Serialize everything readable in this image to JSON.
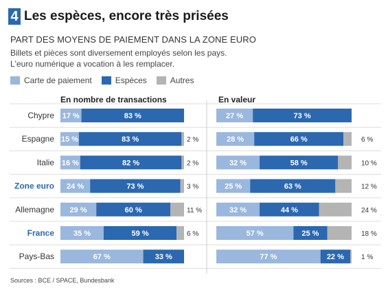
{
  "header": {
    "number": "4",
    "title": "Les espèces, encore très prisées"
  },
  "subtitle": "PART DES MOYENS DE PAIEMENT DANS LA ZONE EURO",
  "description": [
    "Billets et pièces sont diversement employés selon les pays.",
    "L'euro numérique a vocation à les remplacer."
  ],
  "legend": [
    {
      "label": "Carte de paiement",
      "color": "#9ab7dd"
    },
    {
      "label": "Espèces",
      "color": "#2b68b0"
    },
    {
      "label": "Autres",
      "color": "#b4b4b4"
    }
  ],
  "source": "Sources : BCE / SPACE, Bundesbank",
  "colors": {
    "card": "#9ab7dd",
    "cash": "#2b68b0",
    "other": "#b4b4b4",
    "highlight": "#2b68b0"
  },
  "chart_data": [
    {
      "type": "bar",
      "orientation": "horizontal-stacked",
      "title": "En nombre de transactions",
      "unit": "%",
      "categories": [
        "Chypre",
        "Espagne",
        "Italie",
        "Zone euro",
        "Allemagne",
        "France",
        "Pays-Bas"
      ],
      "highlighted": [
        "Zone euro",
        "France"
      ],
      "series": [
        {
          "name": "Carte de paiement",
          "values": [
            17,
            15,
            16,
            24,
            29,
            35,
            67
          ]
        },
        {
          "name": "Espèces",
          "values": [
            83,
            83,
            82,
            73,
            60,
            59,
            33
          ]
        },
        {
          "name": "Autres",
          "values": [
            0,
            2,
            2,
            3,
            11,
            6,
            0
          ]
        }
      ]
    },
    {
      "type": "bar",
      "orientation": "horizontal-stacked",
      "title": "En valeur",
      "unit": "%",
      "categories": [
        "Chypre",
        "Espagne",
        "Italie",
        "Zone euro",
        "Allemagne",
        "France",
        "Pays-Bas"
      ],
      "highlighted": [
        "Zone euro",
        "France"
      ],
      "series": [
        {
          "name": "Carte de paiement",
          "values": [
            27,
            28,
            32,
            25,
            32,
            57,
            77
          ]
        },
        {
          "name": "Espèces",
          "values": [
            73,
            66,
            58,
            63,
            44,
            25,
            22
          ]
        },
        {
          "name": "Autres",
          "values": [
            0,
            6,
            10,
            12,
            24,
            18,
            1
          ]
        }
      ]
    }
  ]
}
